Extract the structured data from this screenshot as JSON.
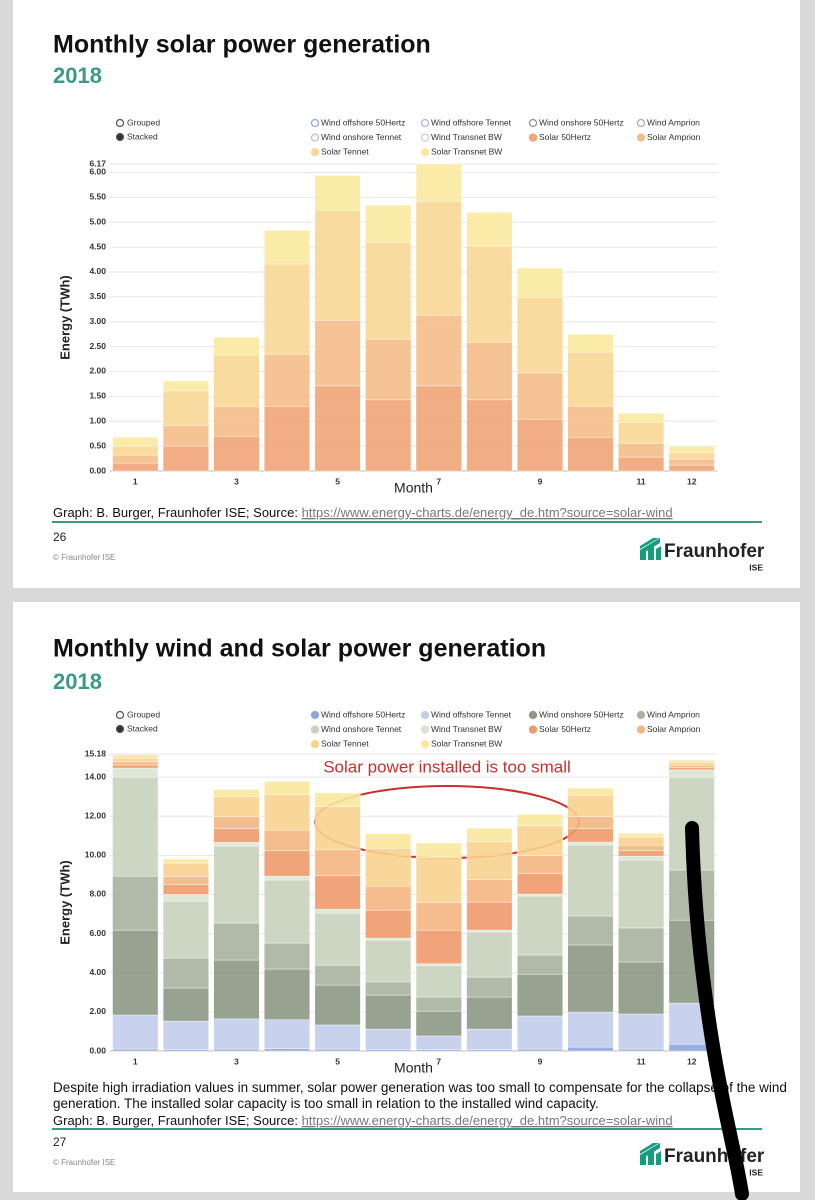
{
  "chart_data": [
    {
      "type": "bar",
      "stacked": true,
      "title": "Monthly solar power generation",
      "subtitle": "2018",
      "xlabel": "Month",
      "ylabel": "Energy (TWh)",
      "mode_options": [
        {
          "label": "Grouped",
          "selected": false
        },
        {
          "label": "Stacked",
          "selected": true
        }
      ],
      "categories": [
        "1",
        null,
        "3",
        null,
        "5",
        null,
        "7",
        null,
        "9",
        null,
        "11",
        "12"
      ],
      "ylim": [
        0,
        6.17
      ],
      "yticks": [
        {
          "value": 0,
          "label": "0.00"
        },
        {
          "value": 0.5,
          "label": "0.50"
        },
        {
          "value": 1,
          "label": "1.00"
        },
        {
          "value": 1.5,
          "label": "1.50"
        },
        {
          "value": 2,
          "label": "2.00"
        },
        {
          "value": 2.5,
          "label": "2.50"
        },
        {
          "value": 3,
          "label": "3.00"
        },
        {
          "value": 3.5,
          "label": "3.50"
        },
        {
          "value": 4,
          "label": "4.00"
        },
        {
          "value": 4.5,
          "label": "4.50"
        },
        {
          "value": 5,
          "label": "5.00"
        },
        {
          "value": 5.5,
          "label": "5.50"
        },
        {
          "value": 6,
          "label": "6.00"
        },
        6.17
      ],
      "grid": true,
      "series": [
        {
          "name": "Wind offshore 50Hertz",
          "color": "#8ea6dc",
          "visible": false
        },
        {
          "name": "Wind offshore Tennet",
          "color": "#a9b8e4",
          "visible": false
        },
        {
          "name": "Wind onshore 50Hertz",
          "color": "#8c9884",
          "visible": false
        },
        {
          "name": "Wind Amprion",
          "color": "#a9b39f",
          "visible": false
        },
        {
          "name": "Wind onshore Tennet",
          "color": "#b9c4ae",
          "visible": false
        },
        {
          "name": "Wind Transnet BW",
          "color": "#c9d3bf",
          "visible": false
        },
        {
          "name": "Solar 50Hertz",
          "color": "#f0a477",
          "visible": true,
          "values": [
            0.16,
            0.5,
            0.7,
            1.3,
            1.71,
            1.43,
            1.71,
            1.43,
            1.04,
            0.68,
            0.28,
            0.12
          ]
        },
        {
          "name": "Solar Amprion",
          "color": "#f5bd88",
          "visible": true,
          "values": [
            0.16,
            0.42,
            0.6,
            1.05,
            1.32,
            1.22,
            1.42,
            1.16,
            0.93,
            0.62,
            0.28,
            0.12
          ]
        },
        {
          "name": "Solar Tennet",
          "color": "#f8d795",
          "visible": true,
          "values": [
            0.18,
            0.69,
            1.03,
            1.81,
            2.21,
            1.95,
            2.29,
            1.93,
            1.52,
            1.09,
            0.42,
            0.14
          ]
        },
        {
          "name": "Solar Transnet BW",
          "color": "#fbe9a0",
          "visible": true,
          "values": [
            0.18,
            0.2,
            0.36,
            0.68,
            0.7,
            0.74,
            0.75,
            0.68,
            0.59,
            0.36,
            0.18,
            0.12
          ]
        }
      ]
    },
    {
      "type": "bar",
      "stacked": true,
      "title": "Monthly wind and solar power generation",
      "subtitle": "2018",
      "xlabel": "Month",
      "ylabel": "Energy (TWh)",
      "annotation": "Solar power installed is too small",
      "mode_options": [
        {
          "label": "Grouped",
          "selected": false
        },
        {
          "label": "Stacked",
          "selected": true
        }
      ],
      "categories": [
        "1",
        null,
        "3",
        null,
        "5",
        null,
        "7",
        null,
        "9",
        null,
        "11",
        "12"
      ],
      "ylim": [
        0,
        15.18
      ],
      "yticks": [
        {
          "value": 0,
          "label": "0.00"
        },
        {
          "value": 2,
          "label": "2.00"
        },
        {
          "value": 4,
          "label": "4.00"
        },
        {
          "value": 6,
          "label": "6.00"
        },
        {
          "value": 8,
          "label": "8.00"
        },
        {
          "value": 10,
          "label": "10.00"
        },
        {
          "value": 12,
          "label": "12.00"
        },
        {
          "value": 14,
          "label": "14.00"
        },
        15.18
      ],
      "grid": true,
      "series": [
        {
          "name": "Wind offshore 50Hertz",
          "color": "#8ea6dc",
          "visible": true,
          "values": [
            0.1,
            0.08,
            0.1,
            0.12,
            0.1,
            0.08,
            0.06,
            0.06,
            0.1,
            0.2,
            0.1,
            0.35
          ]
        },
        {
          "name": "Wind offshore Tennet",
          "color": "#c3cdea",
          "visible": true,
          "values": [
            1.74,
            1.45,
            1.54,
            1.48,
            1.23,
            1.04,
            0.71,
            1.06,
            1.69,
            1.79,
            1.79,
            2.1
          ]
        },
        {
          "name": "Wind onshore 50Hertz",
          "color": "#8c9884",
          "visible": true,
          "values": [
            4.34,
            1.69,
            3.01,
            2.59,
            2.04,
            1.74,
            1.27,
            1.64,
            2.14,
            3.43,
            2.66,
            4.24
          ]
        },
        {
          "name": "Wind Amprion",
          "color": "#a9b39f",
          "visible": true,
          "values": [
            2.76,
            1.53,
            1.89,
            1.33,
            1.02,
            0.67,
            0.72,
            1.02,
            0.98,
            1.48,
            1.74,
            2.56
          ]
        },
        {
          "name": "Wind onshore Tennet",
          "color": "#c6d2bd",
          "visible": true,
          "values": [
            5.06,
            2.91,
            3.93,
            3.22,
            2.66,
            2.14,
            1.6,
            2.3,
            3.01,
            3.63,
            3.47,
            4.75
          ]
        },
        {
          "name": "Wind Transnet BW",
          "color": "#dbe4d3",
          "visible": true,
          "values": [
            0.46,
            0.34,
            0.2,
            0.2,
            0.2,
            0.1,
            0.1,
            0.1,
            0.1,
            0.15,
            0.2,
            0.37
          ]
        },
        {
          "name": "Solar 50Hertz",
          "color": "#ef9a6b",
          "visible": true,
          "values": [
            0.16,
            0.5,
            0.7,
            1.3,
            1.71,
            1.43,
            1.71,
            1.43,
            1.04,
            0.68,
            0.28,
            0.12
          ]
        },
        {
          "name": "Solar Amprion",
          "color": "#f4b681",
          "visible": true,
          "values": [
            0.16,
            0.42,
            0.6,
            1.05,
            1.32,
            1.22,
            1.42,
            1.16,
            0.93,
            0.62,
            0.28,
            0.12
          ]
        },
        {
          "name": "Solar Tennet",
          "color": "#f8d390",
          "visible": true,
          "values": [
            0.18,
            0.69,
            1.03,
            1.81,
            2.21,
            1.95,
            2.29,
            1.93,
            1.52,
            1.09,
            0.42,
            0.14
          ]
        },
        {
          "name": "Solar Transnet BW",
          "color": "#fbe89c",
          "visible": true,
          "values": [
            0.18,
            0.2,
            0.36,
            0.68,
            0.7,
            0.74,
            0.75,
            0.68,
            0.59,
            0.36,
            0.18,
            0.12
          ]
        }
      ]
    }
  ],
  "slides": [
    {
      "source_prefix": "Graph: B. Burger, Fraunhofer ISE; Source: ",
      "source_url": "https://www.energy-charts.de/energy_de.htm?source=solar-wind",
      "page_number": "26",
      "copyright": "© Fraunhofer ISE"
    },
    {
      "note": "Despite high irradiation values in summer, solar power generation was too small to compensate for the collapse of the wind generation. The installed solar capacity is too small in relation to the installed wind capacity.",
      "source_prefix": "Graph: B. Burger, Fraunhofer ISE; Source: ",
      "source_url": "https://www.energy-charts.de/energy_de.htm?source=solar-wind",
      "page_number": "27",
      "copyright": "© Fraunhofer ISE"
    }
  ],
  "logo": {
    "name": "Fraunhofer",
    "unit": "ISE"
  }
}
